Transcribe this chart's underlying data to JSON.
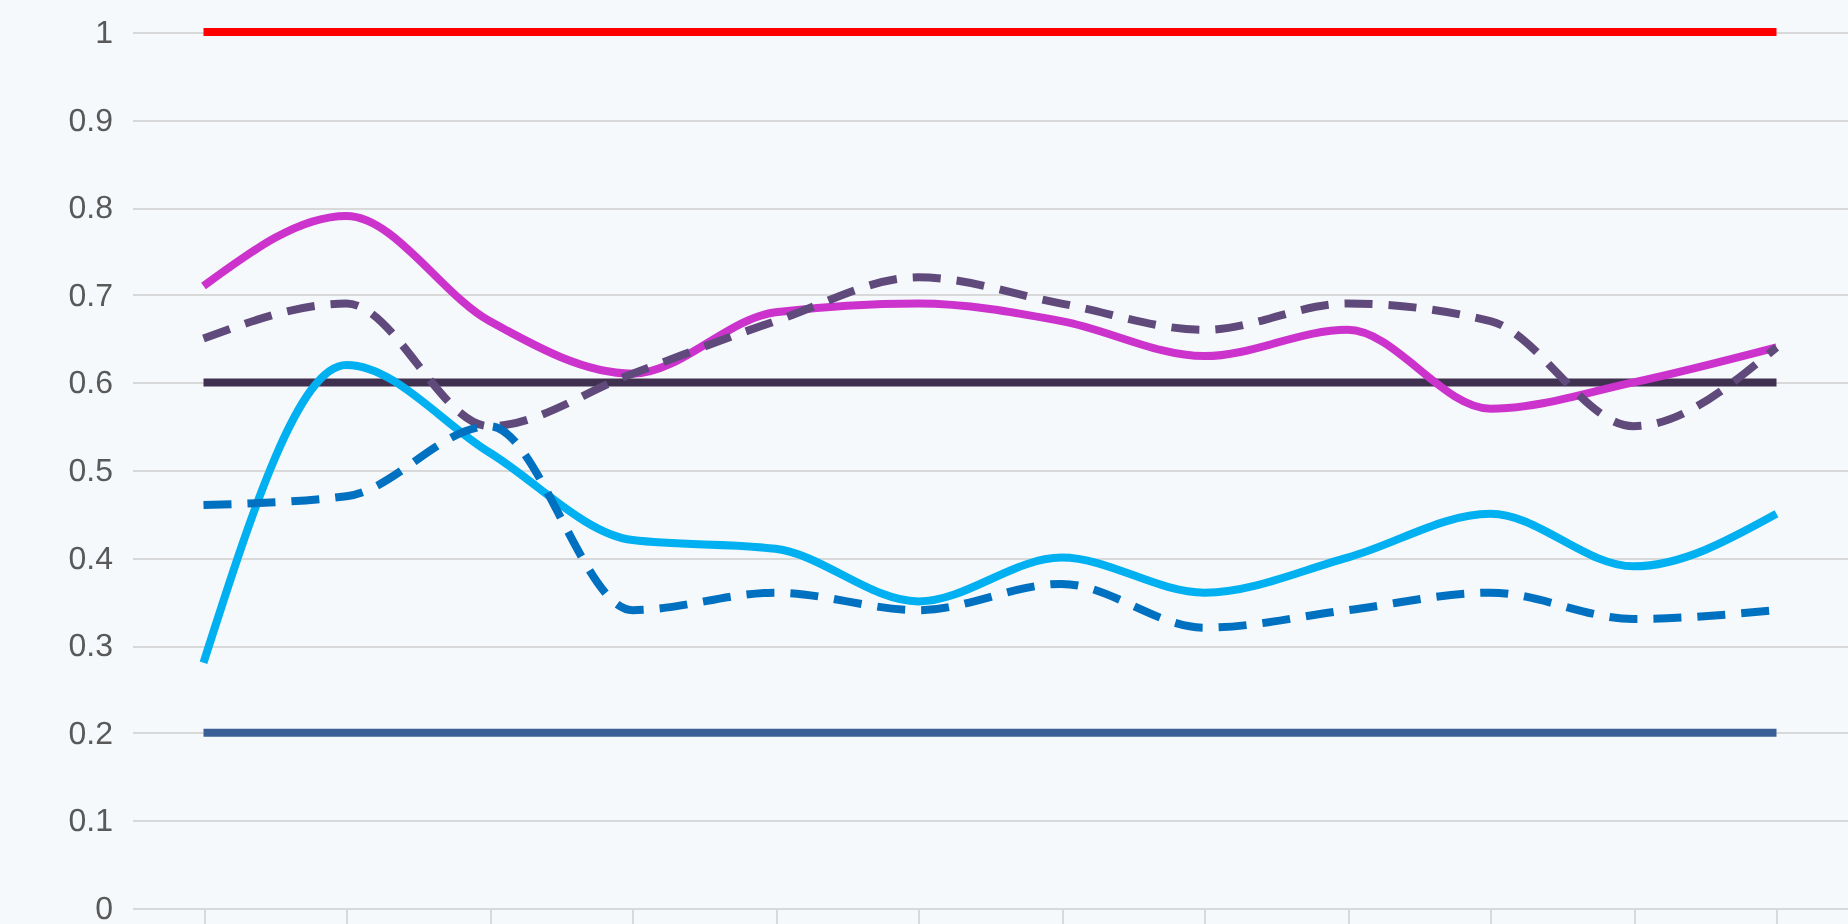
{
  "chart_data": {
    "type": "line",
    "categories": [
      null,
      null,
      null,
      null,
      null,
      null,
      null,
      null,
      null,
      null,
      null,
      null
    ],
    "ylim": [
      0,
      1
    ],
    "yticks": [
      0,
      0.1,
      0.2,
      0.3,
      0.4,
      0.5,
      0.6,
      0.7,
      0.8,
      0.9,
      1
    ],
    "grid": "y",
    "tick_labels": "y",
    "series": [
      {
        "color": "#ff0000",
        "line_style": "solid",
        "values": [
          1,
          1,
          1,
          1,
          1,
          1,
          1,
          1,
          1,
          1,
          1,
          1
        ]
      },
      {
        "color": "#403151",
        "line_style": "solid",
        "values": [
          0.6,
          0.6,
          0.6,
          0.6,
          0.6,
          0.6,
          0.6,
          0.6,
          0.6,
          0.6,
          0.6,
          0.6
        ]
      },
      {
        "color": "#3a5f96",
        "line_style": "solid",
        "values": [
          0.2,
          0.2,
          0.2,
          0.2,
          0.2,
          0.2,
          0.2,
          0.2,
          0.2,
          0.2,
          0.2,
          0.2
        ]
      },
      {
        "color": "#cc33cc",
        "line_style": "solid",
        "values": [
          0.71,
          0.79,
          0.67,
          0.61,
          0.68,
          0.69,
          0.67,
          0.63,
          0.66,
          0.57,
          0.6,
          0.64
        ]
      },
      {
        "color": "#00b0f0",
        "line_style": "solid",
        "values": [
          0.28,
          0.62,
          0.52,
          0.42,
          0.41,
          0.35,
          0.4,
          0.36,
          0.4,
          0.45,
          0.39,
          0.45
        ]
      },
      {
        "color": "#604a7b",
        "line_style": "dashed",
        "values": [
          0.65,
          0.69,
          0.55,
          0.61,
          0.67,
          0.72,
          0.69,
          0.66,
          0.69,
          0.67,
          0.55,
          0.64
        ]
      },
      {
        "color": "#0070c0",
        "line_style": "dashed",
        "values": [
          0.46,
          0.47,
          0.55,
          0.34,
          0.36,
          0.34,
          0.37,
          0.32,
          0.34,
          0.36,
          0.33,
          0.34
        ]
      }
    ]
  }
}
